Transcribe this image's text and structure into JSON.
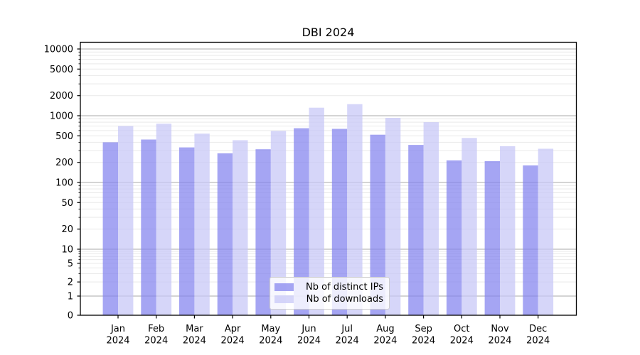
{
  "chart_data": {
    "type": "bar",
    "title": "DBI 2024",
    "categories": [
      "Jan",
      "Feb",
      "Mar",
      "Apr",
      "May",
      "Jun",
      "Jul",
      "Aug",
      "Sep",
      "Oct",
      "Nov",
      "Dec"
    ],
    "x_tick_second_line": "2024",
    "series": [
      {
        "name": "Nb of distinct IPs",
        "color": "#8282ef",
        "alpha": 0.72,
        "values": [
          400,
          440,
          335,
          273,
          315,
          650,
          635,
          520,
          365,
          214,
          209,
          180
        ]
      },
      {
        "name": "Nb of downloads",
        "color": "#c6c6f7",
        "alpha": 0.72,
        "values": [
          700,
          760,
          540,
          430,
          590,
          1320,
          1490,
          930,
          800,
          465,
          350,
          320
        ]
      }
    ],
    "yscale": "symlog",
    "ylim": [
      0,
      12700
    ],
    "yticks": [
      0,
      1,
      2,
      5,
      10,
      20,
      50,
      100,
      200,
      500,
      1000,
      2000,
      5000,
      10000
    ],
    "ytick_labels": [
      "0",
      "1",
      "2",
      "5",
      "10",
      "20",
      "50",
      "100",
      "200",
      "500",
      "1000",
      "2000",
      "5000",
      "10000"
    ],
    "grid": true,
    "legend_position": "lower center",
    "colors": {
      "major_grid": "#bbbbbb",
      "minor_grid": "#e9e9e9",
      "spine": "#000000",
      "tick": "#000000",
      "text": "#000000",
      "legend_border": "#cccccc",
      "background": "#ffffff"
    }
  }
}
